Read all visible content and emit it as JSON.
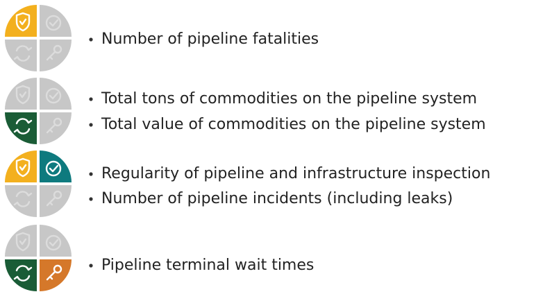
{
  "groups": [
    {
      "items": [
        "Number of pipeline fatalities"
      ]
    },
    {
      "items": [
        "Total tons of commodities on the pipeline system",
        "Total value of commodities on the pipeline system"
      ]
    },
    {
      "items": [
        "Regularity of pipeline and infrastructure inspection",
        "Number of pipeline incidents (including leaks)"
      ]
    },
    {
      "items": [
        "Pipeline terminal wait times"
      ]
    }
  ]
}
